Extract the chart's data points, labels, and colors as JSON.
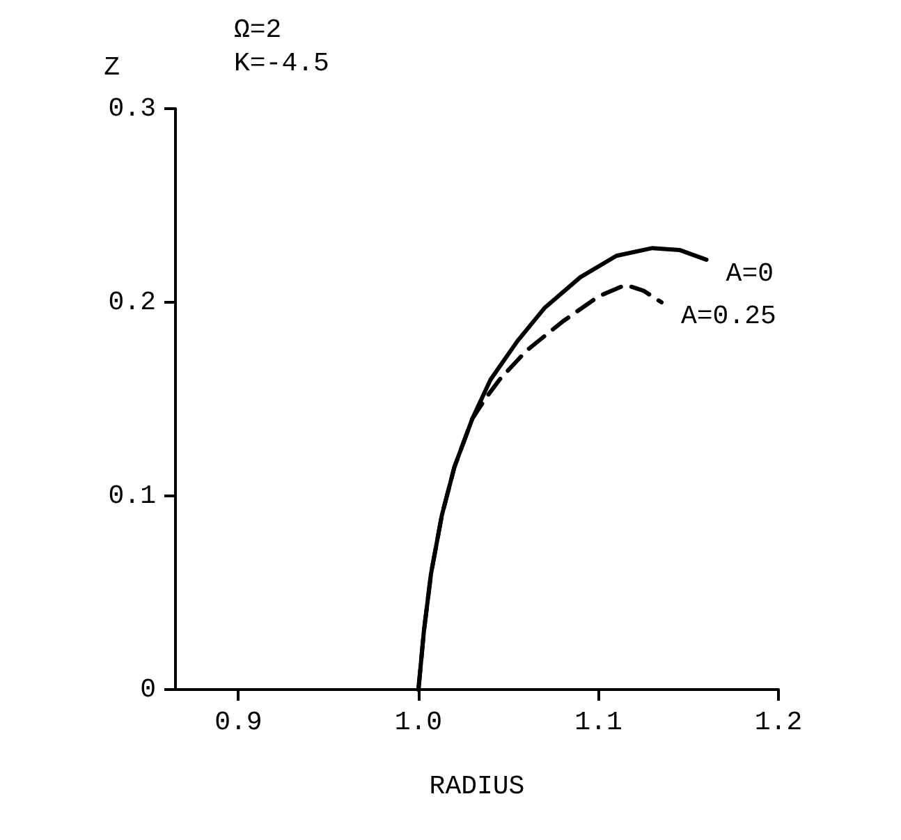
{
  "chart_data": {
    "type": "line",
    "xlabel": "RADIUS",
    "ylabel": "Z",
    "annotations": [
      "Ω=2",
      "K=-4.5"
    ],
    "xlim": [
      0.865,
      1.2
    ],
    "xticks": [
      0.9,
      {
        "value": 1,
        "label": "1.0"
      },
      1.1,
      1.2
    ],
    "ylim": [
      0,
      0.3
    ],
    "yticks": [
      0,
      0.1,
      0.2,
      0.3
    ],
    "grid": false,
    "legend": false,
    "marker": "none",
    "series": [
      {
        "name": "A=0",
        "color": "#000000",
        "line_style": "solid",
        "x": [
          1.0,
          1.003,
          1.007,
          1.013,
          1.02,
          1.03,
          1.04,
          1.055,
          1.07,
          1.09,
          1.11,
          1.13,
          1.145,
          1.16
        ],
        "values": [
          0,
          0.03,
          0.06,
          0.09,
          0.115,
          0.14,
          0.16,
          0.18,
          0.197,
          0.213,
          0.224,
          0.228,
          0.227,
          0.222
        ]
      },
      {
        "name": "A=0.25",
        "color": "#000000",
        "line_style": "dashed",
        "x": [
          1.0,
          1.003,
          1.007,
          1.013,
          1.02,
          1.03,
          1.037,
          1.045,
          1.06,
          1.08,
          1.1,
          1.115,
          1.125,
          1.135
        ],
        "values": [
          0,
          0.03,
          0.06,
          0.09,
          0.115,
          0.14,
          0.15,
          0.16,
          0.175,
          0.19,
          0.203,
          0.209,
          0.206,
          0.2
        ]
      }
    ]
  }
}
